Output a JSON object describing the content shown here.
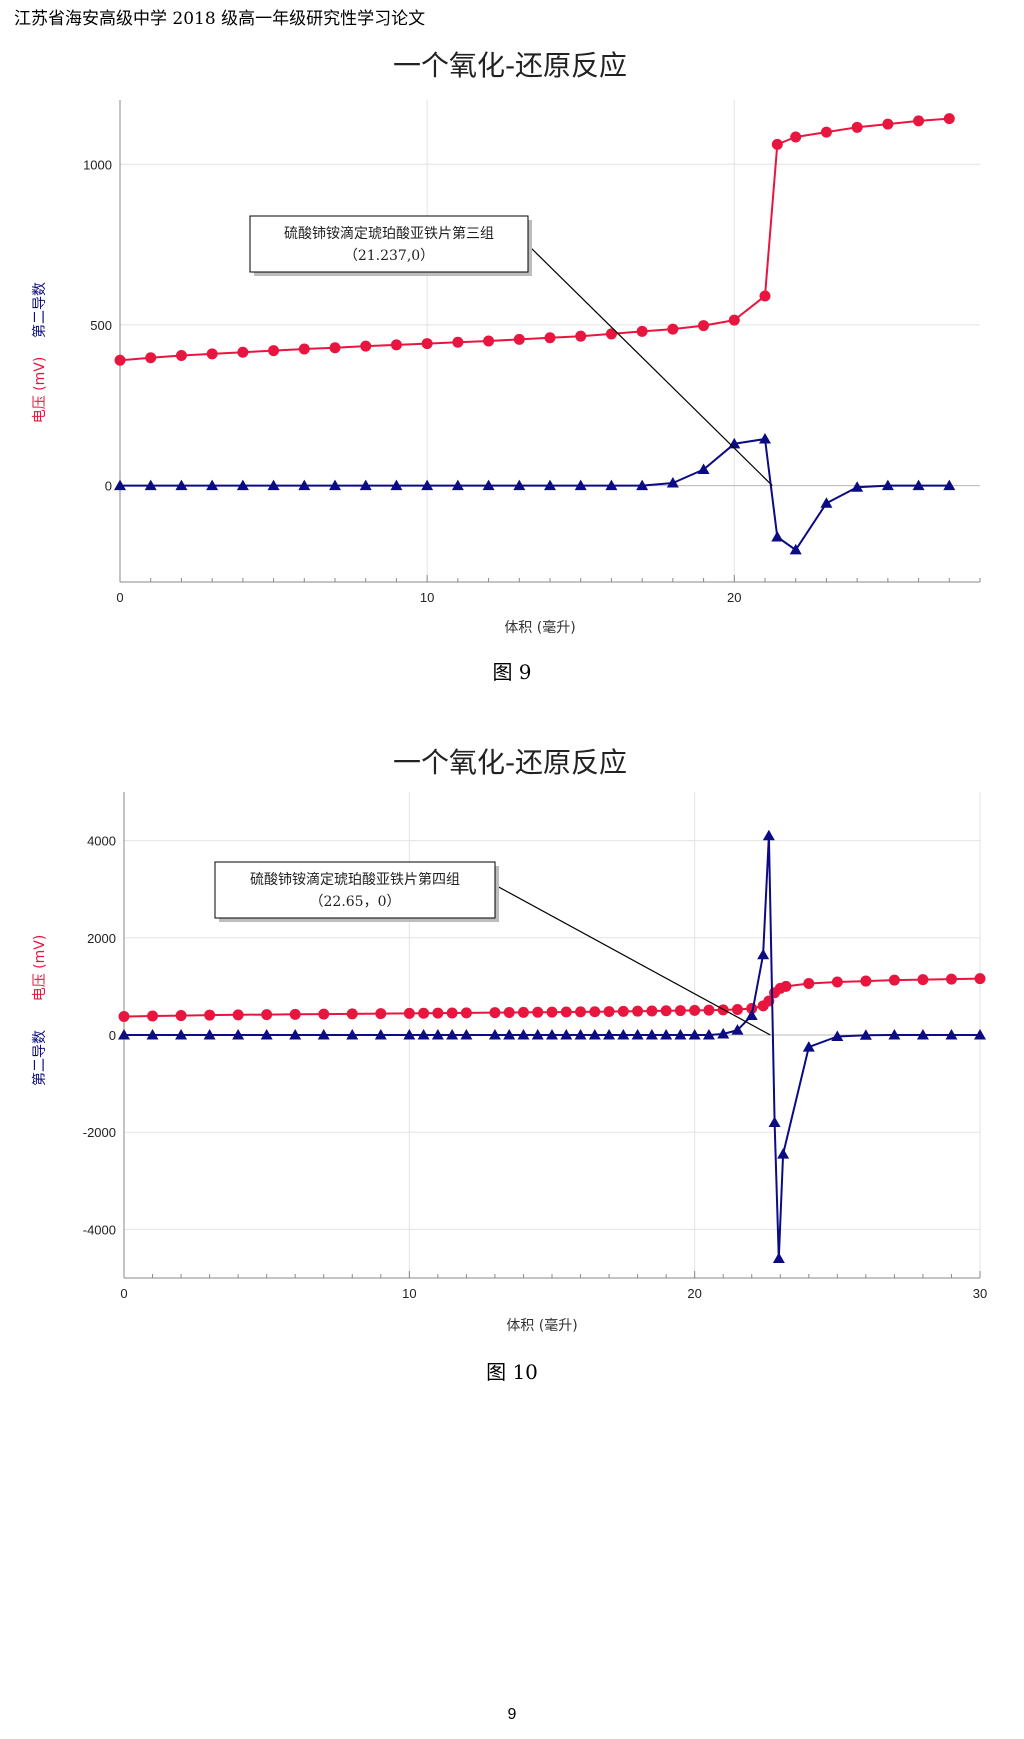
{
  "header": {
    "text": "江苏省海安高级中学 2018 级高一年级研究性学习论文"
  },
  "page_number": "9",
  "colors": {
    "voltage": "#e8163f",
    "second_derivative": "#0b0b83",
    "grid": "#e3e3e3",
    "axis": "#888888"
  },
  "figures": [
    {
      "caption": "图 9"
    },
    {
      "caption": "图 10"
    }
  ],
  "chart_data": [
    {
      "type": "line",
      "title": "一个氧化-还原反应",
      "xlabel": "体积 (毫升)",
      "ylabel_voltage": "电压 (mV)",
      "ylabel_derivative": "第二导数",
      "xlim": [
        0,
        28
      ],
      "ylim": [
        -300,
        1200
      ],
      "x_ticks": [
        0,
        10,
        20
      ],
      "y_ticks": [
        0,
        500,
        1000
      ],
      "grid": true,
      "annotation": {
        "line1": "硫酸铈铵滴定琥珀酸亚铁片第三组",
        "line2": "（21.237,0）",
        "point": [
          21.237,
          0
        ]
      },
      "series": [
        {
          "name": "电压 (mV)",
          "color": "#e8163f",
          "marker": "circle",
          "x": [
            0,
            1,
            2,
            3,
            4,
            5,
            6,
            7,
            8,
            9,
            10,
            11,
            12,
            13,
            14,
            15,
            16,
            17,
            18,
            19,
            20,
            21,
            21.4,
            22,
            23,
            24,
            25,
            26,
            27
          ],
          "y": [
            390,
            398,
            405,
            410,
            415,
            420,
            425,
            429,
            434,
            438,
            442,
            446,
            450,
            455,
            460,
            465,
            472,
            480,
            487,
            498,
            515,
            590,
            1062,
            1085,
            1100,
            1115,
            1125,
            1135,
            1142
          ]
        },
        {
          "name": "第二导数",
          "color": "#0b0b83",
          "marker": "triangle",
          "x": [
            0,
            1,
            2,
            3,
            4,
            5,
            6,
            7,
            8,
            9,
            10,
            11,
            12,
            13,
            14,
            15,
            16,
            17,
            18,
            19,
            20,
            21,
            21.4,
            22,
            23,
            24,
            25,
            26,
            27
          ],
          "y": [
            0,
            0,
            0,
            0,
            0,
            0,
            0,
            0,
            0,
            0,
            0,
            0,
            0,
            0,
            0,
            0,
            0,
            0,
            8,
            50,
            130,
            145,
            -160,
            -200,
            -55,
            -5,
            0,
            0,
            0
          ]
        }
      ]
    },
    {
      "type": "line",
      "title": "一个氧化-还原反应",
      "xlabel": "体积 (毫升)",
      "ylabel_voltage": "电压 (mV)",
      "ylabel_derivative": "第二导数",
      "xlim": [
        0,
        30
      ],
      "ylim": [
        -5000,
        5000
      ],
      "x_ticks": [
        0,
        10,
        20,
        30
      ],
      "y_ticks": [
        -4000,
        -2000,
        0,
        2000,
        4000
      ],
      "grid": true,
      "annotation": {
        "line1": "硫酸铈铵滴定琥珀酸亚铁片第四组",
        "line2": "（22.65，0）",
        "point": [
          22.65,
          0
        ]
      },
      "series": [
        {
          "name": "电压 (mV)",
          "color": "#e8163f",
          "marker": "circle",
          "x": [
            0,
            1,
            2,
            3,
            4,
            5,
            6,
            7,
            8,
            9,
            10,
            10.5,
            11,
            11.5,
            12,
            13,
            13.5,
            14,
            14.5,
            15,
            15.5,
            16,
            16.5,
            17,
            17.5,
            18,
            18.5,
            19,
            19.5,
            20,
            20.5,
            21,
            21.5,
            22,
            22.4,
            22.6,
            22.8,
            23,
            23.2,
            24,
            25,
            26,
            27,
            28,
            29,
            30
          ],
          "y": [
            380,
            390,
            400,
            410,
            415,
            420,
            425,
            430,
            435,
            440,
            445,
            448,
            450,
            453,
            455,
            460,
            462,
            465,
            468,
            470,
            473,
            476,
            479,
            482,
            486,
            490,
            494,
            498,
            502,
            506,
            511,
            516,
            525,
            545,
            600,
            700,
            870,
            960,
            1000,
            1060,
            1090,
            1110,
            1130,
            1140,
            1150,
            1160
          ]
        },
        {
          "name": "第二导数",
          "color": "#0b0b83",
          "marker": "triangle",
          "x": [
            0,
            1,
            2,
            3,
            4,
            5,
            6,
            7,
            8,
            9,
            10,
            10.5,
            11,
            11.5,
            12,
            13,
            13.5,
            14,
            14.5,
            15,
            15.5,
            16,
            16.5,
            17,
            17.5,
            18,
            18.5,
            19,
            19.5,
            20,
            20.5,
            21,
            21.5,
            22,
            22.4,
            22.6,
            22.8,
            22.95,
            23.1,
            24,
            25,
            26,
            27,
            28,
            29,
            30
          ],
          "y": [
            0,
            0,
            0,
            0,
            0,
            0,
            0,
            0,
            0,
            0,
            0,
            0,
            0,
            0,
            0,
            0,
            0,
            0,
            0,
            0,
            0,
            0,
            0,
            0,
            0,
            0,
            0,
            0,
            0,
            0,
            0,
            20,
            100,
            400,
            1650,
            4100,
            -1800,
            -4600,
            -2450,
            -250,
            -30,
            -5,
            0,
            0,
            0,
            0
          ]
        }
      ]
    }
  ]
}
